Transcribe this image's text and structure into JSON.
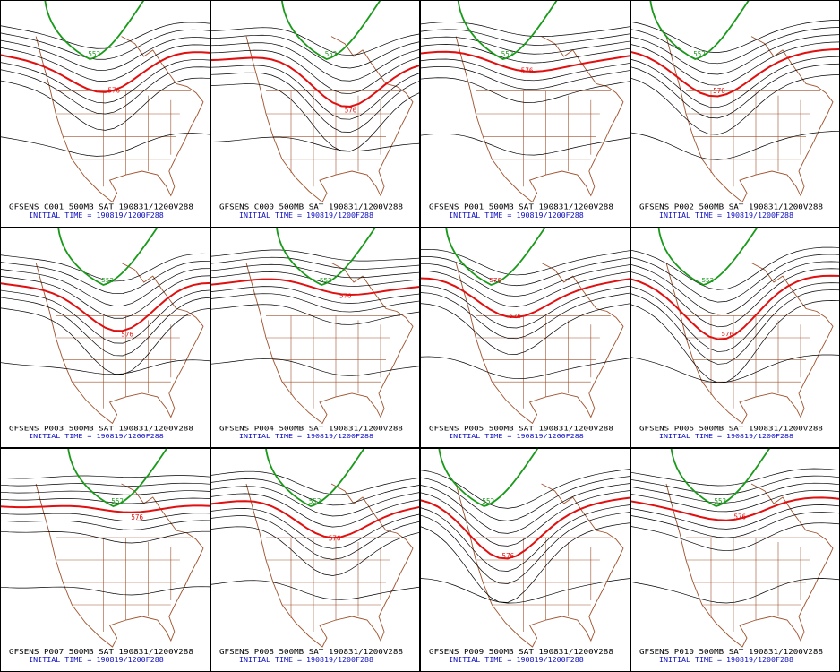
{
  "panels": [
    {
      "title": "GFSENS C001 500MB SAT 190831/1200V288",
      "init": "INITIAL TIME = 190819/1200F288",
      "labels": [
        {
          "text": "552",
          "color": "#1a9a1a"
        },
        {
          "text": "576",
          "color": "#e01010"
        }
      ]
    },
    {
      "title": "GFSENS C000 500MB SAT 190831/1200V288",
      "init": "INITIAL TIME = 190819/1200F288",
      "labels": [
        {
          "text": "552",
          "color": "#1a9a1a"
        },
        {
          "text": "576",
          "color": "#e01010"
        }
      ]
    },
    {
      "title": "GFSENS P001 500MB SAT 190831/1200V288",
      "init": "INITIAL TIME = 190819/1200F288",
      "labels": [
        {
          "text": "552",
          "color": "#1a9a1a"
        },
        {
          "text": "576",
          "color": "#e01010"
        }
      ]
    },
    {
      "title": "GFSENS P002 500MB SAT 190831/1200V288",
      "init": "INITIAL TIME = 190819/1200F288",
      "labels": [
        {
          "text": "552",
          "color": "#1a9a1a"
        },
        {
          "text": "576",
          "color": "#e01010"
        }
      ]
    },
    {
      "title": "GFSENS P003 500MB SAT 190831/1200V288",
      "init": "INITIAL TIME = 190819/1200F288",
      "labels": [
        {
          "text": "552",
          "color": "#1a9a1a"
        },
        {
          "text": "576",
          "color": "#e01010"
        }
      ]
    },
    {
      "title": "GFSENS P004 500MB SAT 190831/1200V288",
      "init": "INITIAL TIME = 190819/1200F288",
      "labels": [
        {
          "text": "552",
          "color": "#1a9a1a"
        },
        {
          "text": "576",
          "color": "#e01010"
        }
      ]
    },
    {
      "title": "GFSENS P005 500MB SAT 190831/1200V288",
      "init": "INITIAL TIME = 190819/1200F288",
      "labels": [
        {
          "text": "576",
          "color": "#e01010"
        },
        {
          "text": "576",
          "color": "#e01010"
        }
      ]
    },
    {
      "title": "GFSENS P006 500MB SAT 190831/1200V288",
      "init": "INITIAL TIME = 190819/1200F288",
      "labels": [
        {
          "text": "552",
          "color": "#1a9a1a"
        },
        {
          "text": "576",
          "color": "#e01010"
        }
      ]
    },
    {
      "title": "GFSENS P007 500MB SAT 190831/1200V288",
      "init": "INITIAL TIME = 190819/1200F288",
      "labels": [
        {
          "text": "552",
          "color": "#1a9a1a"
        },
        {
          "text": "576",
          "color": "#e01010"
        }
      ]
    },
    {
      "title": "GFSENS P008 500MB SAT 190831/1200V288",
      "init": "INITIAL TIME = 190819/1200F288",
      "labels": [
        {
          "text": "552",
          "color": "#1a9a1a"
        },
        {
          "text": "576",
          "color": "#e01010"
        }
      ]
    },
    {
      "title": "GFSENS P009 500MB SAT 190831/1200V288",
      "init": "INITIAL TIME = 190819/1200F288",
      "labels": [
        {
          "text": "552",
          "color": "#1a9a1a"
        },
        {
          "text": "576",
          "color": "#e01010"
        }
      ]
    },
    {
      "title": "GFSENS P010 500MB SAT 190831/1200V288",
      "init": "INITIAL TIME = 190819/1200F288",
      "labels": [
        {
          "text": "552",
          "color": "#1a9a1a"
        },
        {
          "text": "576",
          "color": "#e01010"
        }
      ]
    }
  ]
}
